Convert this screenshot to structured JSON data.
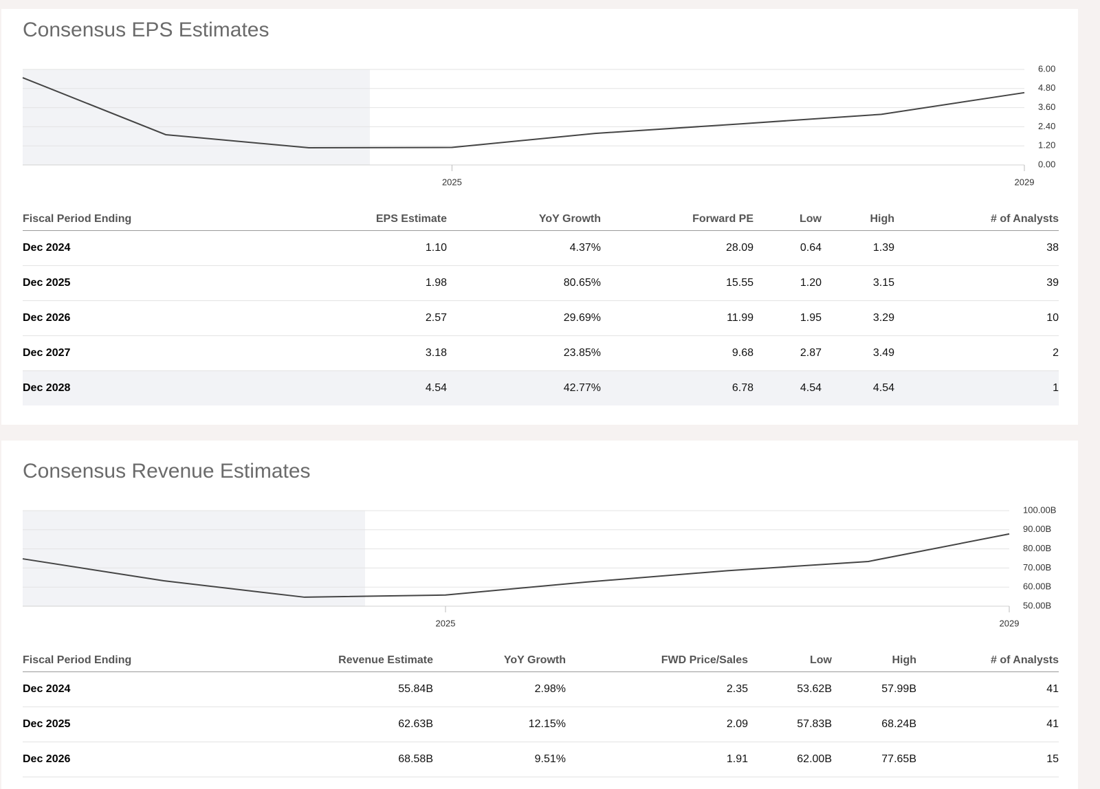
{
  "sections": [
    {
      "title": "Consensus EPS Estimates",
      "table": {
        "columns": [
          "Fiscal Period Ending",
          "EPS Estimate",
          "YoY Growth",
          "Forward PE",
          "Low",
          "High",
          "# of Analysts"
        ],
        "rows": [
          [
            "Dec 2024",
            "1.10",
            "4.37%",
            "28.09",
            "0.64",
            "1.39",
            "38"
          ],
          [
            "Dec 2025",
            "1.98",
            "80.65%",
            "15.55",
            "1.20",
            "3.15",
            "39"
          ],
          [
            "Dec 2026",
            "2.57",
            "29.69%",
            "11.99",
            "1.95",
            "3.29",
            "10"
          ],
          [
            "Dec 2027",
            "3.18",
            "23.85%",
            "9.68",
            "2.87",
            "3.49",
            "2"
          ],
          [
            "Dec 2028",
            "4.54",
            "42.77%",
            "6.78",
            "4.54",
            "4.54",
            "1"
          ]
        ]
      }
    },
    {
      "title": "Consensus Revenue Estimates",
      "table": {
        "columns": [
          "Fiscal Period Ending",
          "Revenue Estimate",
          "YoY Growth",
          "FWD Price/Sales",
          "Low",
          "High",
          "# of Analysts"
        ],
        "rows": [
          [
            "Dec 2024",
            "55.84B",
            "2.98%",
            "2.35",
            "53.62B",
            "57.99B",
            "41"
          ],
          [
            "Dec 2025",
            "62.63B",
            "12.15%",
            "2.09",
            "57.83B",
            "68.24B",
            "41"
          ],
          [
            "Dec 2026",
            "68.58B",
            "9.51%",
            "1.91",
            "62.00B",
            "77.65B",
            "15"
          ]
        ]
      }
    }
  ],
  "chart_data": [
    {
      "type": "line",
      "x": [
        2022,
        2023,
        2024,
        2025,
        2026,
        2027,
        2028,
        2029
      ],
      "values": [
        5.48,
        1.9,
        1.08,
        1.1,
        1.98,
        2.57,
        3.18,
        4.54
      ],
      "color": "#444444",
      "xlim": [
        2022,
        2029
      ],
      "xticks": [
        2025,
        2029
      ],
      "ylim": [
        0,
        6
      ],
      "yticks": [
        {
          "value": 0,
          "label": "0.00"
        },
        {
          "value": 1.2,
          "label": "1.20"
        },
        {
          "value": 2.4,
          "label": "2.40"
        },
        {
          "value": 3.6,
          "label": "3.60"
        },
        {
          "value": 4.8,
          "label": "4.80"
        },
        {
          "value": 6,
          "label": "6.00"
        }
      ],
      "grid": true
    },
    {
      "type": "line",
      "x": [
        2022,
        2023,
        2024,
        2025,
        2026,
        2027,
        2028,
        2029
      ],
      "values": [
        74.8,
        63.3,
        54.7,
        55.84,
        62.63,
        68.58,
        73.4,
        87.8
      ],
      "color": "#444444",
      "xlim": [
        2022,
        2029
      ],
      "xticks": [
        2025,
        2029
      ],
      "ylim": [
        50,
        100
      ],
      "yticks": [
        {
          "value": 50,
          "label": "50.00B"
        },
        {
          "value": 60,
          "label": "60.00B"
        },
        {
          "value": 70,
          "label": "70.00B"
        },
        {
          "value": 80,
          "label": "80.00B"
        },
        {
          "value": 90,
          "label": "90.00B"
        },
        {
          "value": 100,
          "label": "100.00B"
        }
      ],
      "grid": true
    }
  ]
}
